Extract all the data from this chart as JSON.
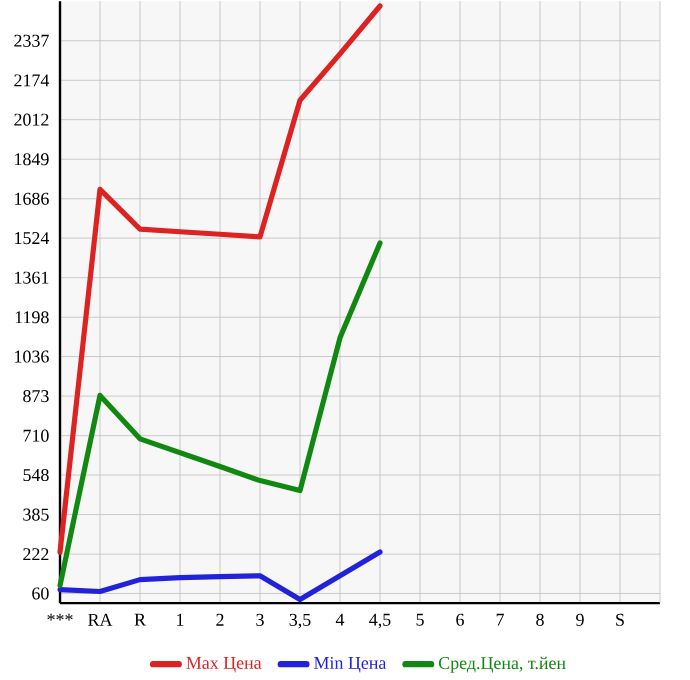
{
  "chart_data": {
    "type": "line",
    "categories": [
      "***",
      "RA",
      "R",
      "1",
      "2",
      "3",
      "3,5",
      "4",
      "4,5",
      "5",
      "6",
      "7",
      "8",
      "9",
      "S"
    ],
    "series": [
      {
        "name": "Max Цена",
        "color": "#dd2222",
        "values": [
          230,
          1725,
          1561,
          1550,
          1540,
          1529,
          2092,
          2283,
          2480,
          null,
          null,
          null,
          null,
          null,
          null
        ]
      },
      {
        "name": "Min Цена",
        "color": "#2222dd",
        "values": [
          76,
          68,
          117,
          125,
          129,
          133,
          35,
          133,
          231,
          null,
          null,
          null,
          null,
          null,
          null
        ]
      },
      {
        "name": "Сред.Цена, т.йен",
        "color": "#118811",
        "values": [
          93,
          876,
          697,
          640,
          583,
          525,
          484,
          1113,
          1504,
          null,
          null,
          null,
          null,
          null,
          null
        ]
      }
    ],
    "ylim": [
      20,
      2500
    ],
    "yticks": [
      60,
      222,
      385,
      548,
      710,
      873,
      1036,
      1198,
      1361,
      1524,
      1686,
      1849,
      2012,
      2174,
      2337
    ],
    "grid": true,
    "legend": "bottom",
    "marker": "none",
    "line_style": "solid"
  }
}
